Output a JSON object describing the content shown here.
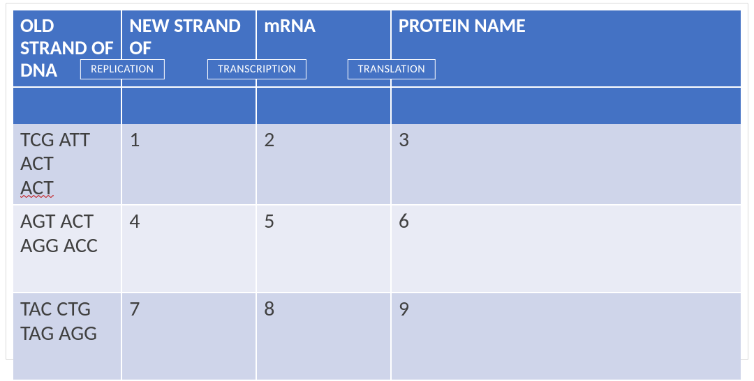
{
  "colors": {
    "header_bg": "#4472c4",
    "header_text": "#ffffff",
    "row_bg": "#cfd5ea",
    "row_alt_bg": "#e9ebf5",
    "frame_border": "#d9d9d9",
    "wavy_underline": "#c00000",
    "body_text": "#404040"
  },
  "table": {
    "columns": [
      "OLD STRAND OF DNA",
      "NEW STRAND OF",
      "mRNA",
      "PROTEIN NAME"
    ],
    "process_labels": [
      "REPLICATION",
      "TRANSCRIPTION",
      "TRANSLATION"
    ],
    "rows": [
      {
        "old": "TCG ATT ACT",
        "old_extra": "ACT",
        "new": "1",
        "mrna": "2",
        "protein": "3",
        "alt": false,
        "height": "short",
        "wavy_extra": true
      },
      {
        "old": "AGT ACT AGG ACC",
        "old_extra": "",
        "new": "4",
        "mrna": "5",
        "protein": "6",
        "alt": true,
        "height": "tall",
        "wavy_extra": false
      },
      {
        "old": "TAC CTG TAG AGG",
        "old_extra": "",
        "new": "7",
        "mrna": "8",
        "protein": "9",
        "alt": false,
        "height": "tall",
        "wavy_extra": false
      }
    ]
  },
  "layout": {
    "label_left_pct": [
      15,
      33.5,
      52
    ],
    "col_widths_pct": [
      15,
      18.5,
      18.5,
      48
    ]
  }
}
